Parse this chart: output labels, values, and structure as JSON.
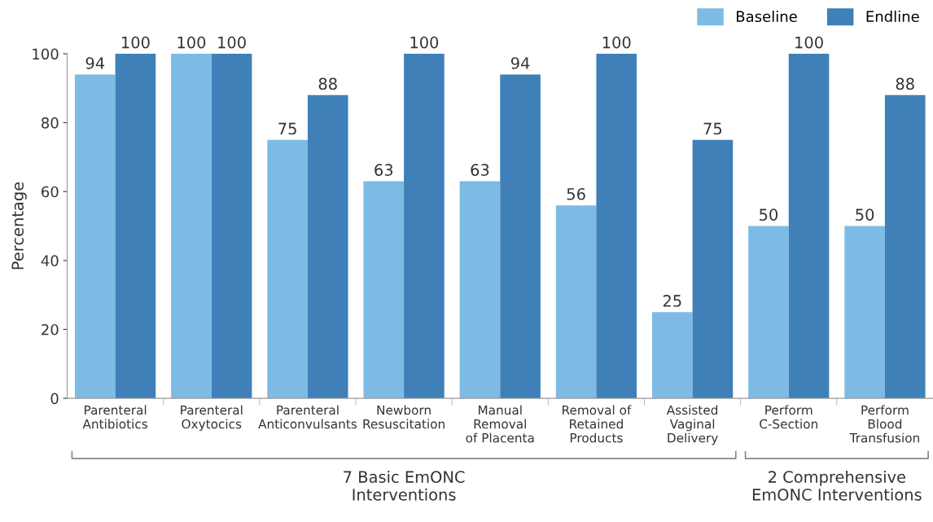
{
  "chart_data": {
    "type": "bar",
    "ylabel": "Percentage",
    "categories": [
      "Parenteral\nAntibiotics",
      "Parenteral\nOxytocics",
      "Parenteral\nAnticonvulsants",
      "Newborn\nResuscitation",
      "Manual\nRemoval\nof Placenta",
      "Removal of\nRetained\nProducts",
      "Assisted\nVaginal\nDelivery",
      "Perform\nC-Section",
      "Perform\nBlood\nTransfusion"
    ],
    "series": [
      {
        "name": "Baseline",
        "color": "#7dbbe5",
        "values": [
          94,
          100,
          75,
          63,
          63,
          56,
          25,
          50,
          50
        ]
      },
      {
        "name": "Endline",
        "color": "#3f80b8",
        "values": [
          100,
          100,
          88,
          100,
          94,
          100,
          75,
          100,
          88
        ]
      }
    ],
    "ylim": [
      0,
      100
    ],
    "yticks": [
      0,
      20,
      40,
      60,
      80,
      100
    ],
    "grid": false,
    "legend": "top right",
    "data_labels": true,
    "annotations": [
      "7 Basic EmONC\nInterventions",
      "2 Comprehensive\nEmONC Interventions"
    ]
  }
}
